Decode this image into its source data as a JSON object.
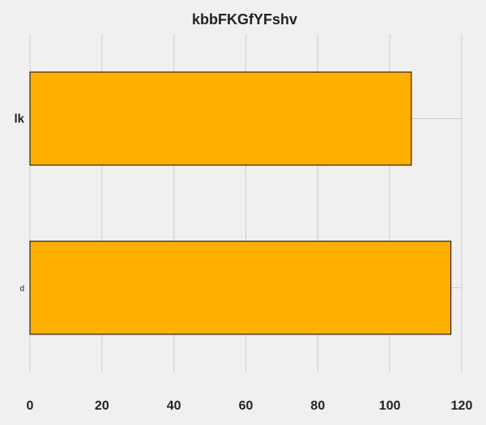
{
  "chart_data": {
    "type": "bar",
    "orientation": "horizontal",
    "title": "kbbFKGfYFshv",
    "xlabel": "",
    "ylabel": "",
    "categories": [
      "lk",
      "d"
    ],
    "values": [
      106,
      117
    ],
    "xlim": [
      0,
      120
    ],
    "xticks": [
      "0",
      "20",
      "40",
      "60",
      "80",
      "100",
      "120"
    ],
    "grid": true,
    "legend": "none",
    "bar_color": "#ffb000",
    "bar_edge_color": "#000000",
    "background_color": "#f0f0f0",
    "grid_color": "#cbcbcb"
  }
}
